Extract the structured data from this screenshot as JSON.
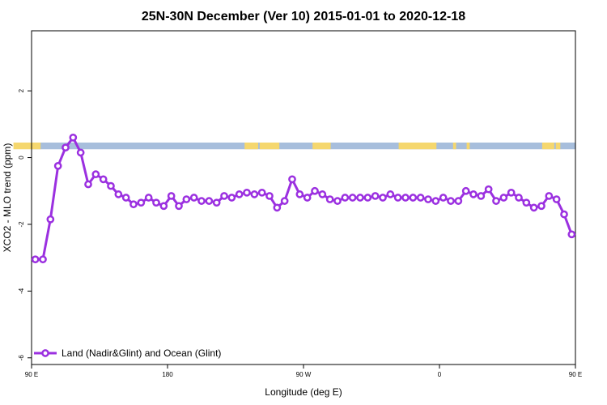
{
  "chart_data": {
    "type": "line",
    "title": "25N-30N December (Ver 10)   2015-01-01 to 2020-12-18",
    "xlabel": "Longitude (deg E)",
    "ylabel": "XCO2 - MLO trend (ppm)",
    "xlim": [
      90,
      450
    ],
    "ylim": [
      -6.2,
      3.8
    ],
    "grid": false,
    "legend_position": "bottom-left",
    "x_ticks": [
      {
        "value": 90,
        "label": "90 E"
      },
      {
        "value": 180,
        "label": "180"
      },
      {
        "value": 270,
        "label": "90 W"
      },
      {
        "value": 360,
        "label": "0"
      },
      {
        "value": 450,
        "label": "90 E"
      }
    ],
    "y_ticks": [
      {
        "value": -6,
        "label": "-6"
      },
      {
        "value": -4,
        "label": "-4"
      },
      {
        "value": -2,
        "label": "-2"
      },
      {
        "value": 0,
        "label": "0"
      },
      {
        "value": 2,
        "label": "2"
      }
    ],
    "series": [
      {
        "name": "Land (Nadir&Glint) and Ocean (Glint)",
        "color": "#9b30e0",
        "x": [
          92.5,
          97.5,
          102.5,
          107.5,
          112.5,
          117.5,
          122.5,
          127.5,
          132.5,
          137.5,
          142.5,
          147.5,
          152.5,
          157.5,
          162.5,
          167.5,
          172.5,
          177.5,
          182.5,
          187.5,
          192.5,
          197.5,
          202.5,
          207.5,
          212.5,
          217.5,
          222.5,
          227.5,
          232.5,
          237.5,
          242.5,
          247.5,
          252.5,
          257.5,
          262.5,
          267.5,
          272.5,
          277.5,
          282.5,
          287.5,
          292.5,
          297.5,
          302.5,
          307.5,
          312.5,
          317.5,
          322.5,
          327.5,
          332.5,
          337.5,
          342.5,
          347.5,
          352.5,
          357.5,
          362.5,
          367.5,
          372.5,
          377.5,
          382.5,
          387.5,
          392.5,
          397.5,
          402.5,
          407.5,
          412.5,
          417.5,
          422.5,
          427.5,
          432.5,
          437.5,
          442.5,
          447.5
        ],
        "values": [
          -3.05,
          -3.05,
          -1.85,
          -0.25,
          0.3,
          0.6,
          0.15,
          -0.8,
          -0.5,
          -0.65,
          -0.85,
          -1.1,
          -1.2,
          -1.4,
          -1.35,
          -1.2,
          -1.35,
          -1.45,
          -1.15,
          -1.45,
          -1.25,
          -1.2,
          -1.3,
          -1.3,
          -1.35,
          -1.15,
          -1.2,
          -1.1,
          -1.05,
          -1.1,
          -1.05,
          -1.15,
          -1.5,
          -1.3,
          -0.65,
          -1.1,
          -1.2,
          -1.0,
          -1.1,
          -1.25,
          -1.3,
          -1.2,
          -1.2,
          -1.2,
          -1.2,
          -1.15,
          -1.2,
          -1.1,
          -1.2,
          -1.2,
          -1.2,
          -1.2,
          -1.25,
          -1.3,
          -1.2,
          -1.3,
          -1.3,
          -1.0,
          -1.1,
          -1.15,
          -0.95,
          -1.3,
          -1.2,
          -1.05,
          -1.2,
          -1.35,
          -1.5,
          -1.45,
          -1.15,
          -1.25,
          -1.7,
          -2.3
        ]
      }
    ],
    "surface_band": {
      "y_range": [
        0.25,
        0.45
      ],
      "ocean_color": "#a7bedc",
      "land_color": "#f5d76e",
      "land_spans": [
        [
          78,
          96
        ],
        [
          231,
          240
        ],
        [
          241,
          254
        ],
        [
          276,
          288
        ],
        [
          333,
          358
        ],
        [
          369,
          371
        ],
        [
          378,
          380
        ],
        [
          428,
          436
        ],
        [
          437,
          440
        ]
      ]
    }
  }
}
